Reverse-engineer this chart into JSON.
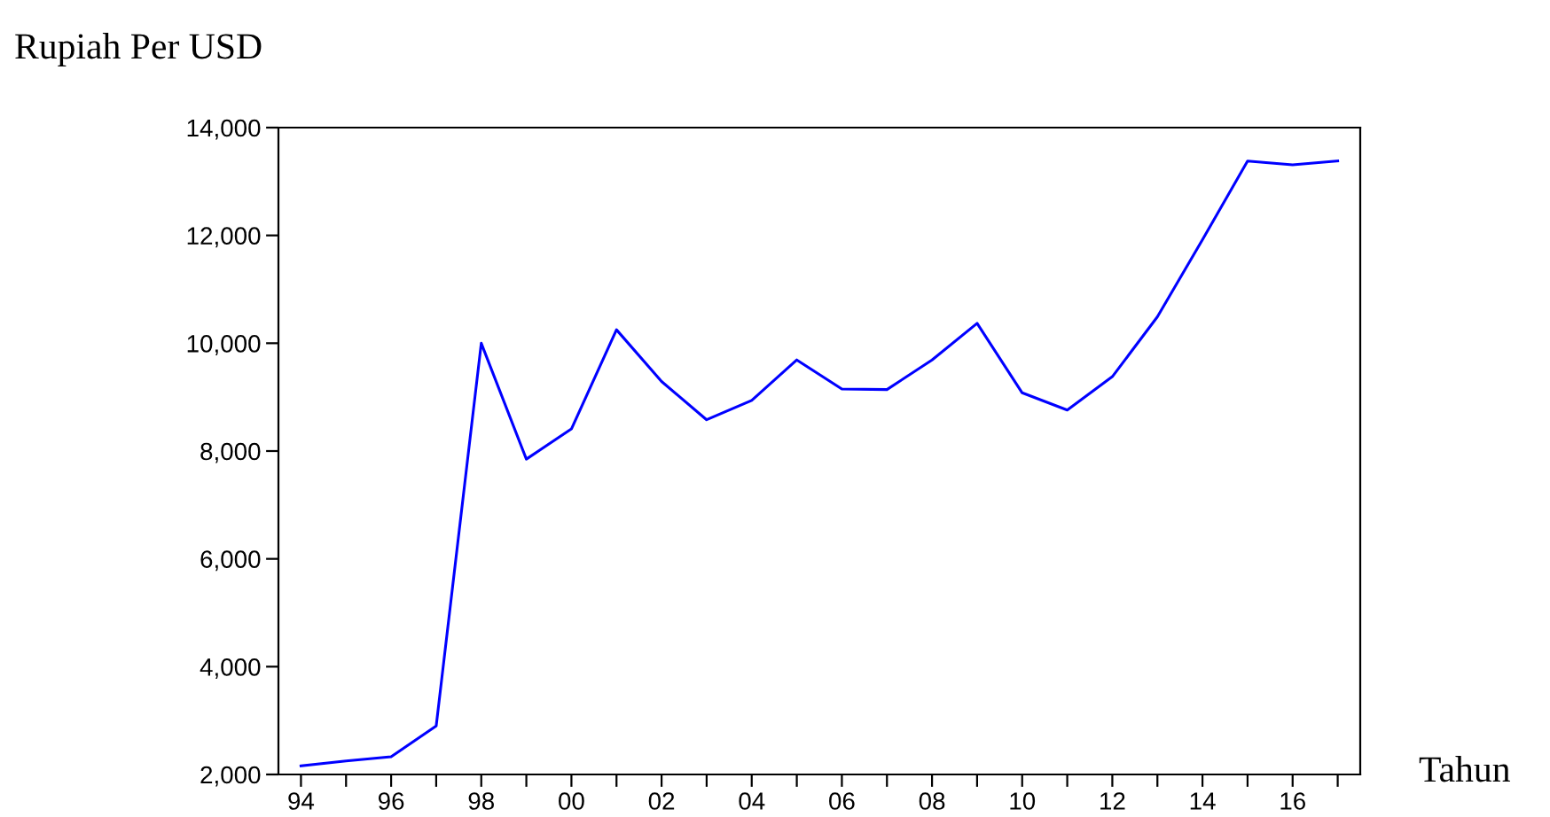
{
  "chart_data": {
    "type": "line",
    "ylabel": "Rupiah Per USD",
    "xlabel": "Tahun",
    "x": [
      1994,
      1995,
      1996,
      1997,
      1998,
      1999,
      2000,
      2001,
      2002,
      2003,
      2004,
      2005,
      2006,
      2007,
      2008,
      2009,
      2010,
      2011,
      2012,
      2013,
      2014,
      2015,
      2016,
      2017
    ],
    "series": [
      {
        "color": "#0000ff",
        "values": [
          2160,
          2250,
          2330,
          2900,
          10000,
          7850,
          8410,
          10250,
          9290,
          8580,
          8940,
          9690,
          9150,
          9140,
          9690,
          10370,
          9080,
          8760,
          9380,
          10490,
          11920,
          13380,
          13310,
          13380
        ]
      }
    ],
    "xlim": [
      1993.5,
      2017.5
    ],
    "xticks": [
      {
        "value": 1994,
        "label": "94"
      },
      {
        "value": 1995,
        "label": null
      },
      {
        "value": 1996,
        "label": "96"
      },
      {
        "value": 1997,
        "label": null
      },
      {
        "value": 1998,
        "label": "98"
      },
      {
        "value": 1999,
        "label": null
      },
      {
        "value": 2000,
        "label": "00"
      },
      {
        "value": 2001,
        "label": null
      },
      {
        "value": 2002,
        "label": "02"
      },
      {
        "value": 2003,
        "label": null
      },
      {
        "value": 2004,
        "label": "04"
      },
      {
        "value": 2005,
        "label": null
      },
      {
        "value": 2006,
        "label": "06"
      },
      {
        "value": 2007,
        "label": null
      },
      {
        "value": 2008,
        "label": "08"
      },
      {
        "value": 2009,
        "label": null
      },
      {
        "value": 2010,
        "label": "10"
      },
      {
        "value": 2011,
        "label": null
      },
      {
        "value": 2012,
        "label": "12"
      },
      {
        "value": 2013,
        "label": null
      },
      {
        "value": 2014,
        "label": "14"
      },
      {
        "value": 2015,
        "label": null
      },
      {
        "value": 2016,
        "label": "16"
      },
      {
        "value": 2017,
        "label": null
      }
    ],
    "ylim": [
      2000,
      14000
    ],
    "yticks": [
      {
        "value": 2000,
        "label": "2,000"
      },
      {
        "value": 4000,
        "label": "4,000"
      },
      {
        "value": 6000,
        "label": "6,000"
      },
      {
        "value": 8000,
        "label": "8,000"
      },
      {
        "value": 10000,
        "label": "10,000"
      },
      {
        "value": 12000,
        "label": "12,000"
      },
      {
        "value": 14000,
        "label": "14,000"
      }
    ],
    "grid": false,
    "legend": false,
    "marker": "none",
    "line_style": "solid"
  }
}
